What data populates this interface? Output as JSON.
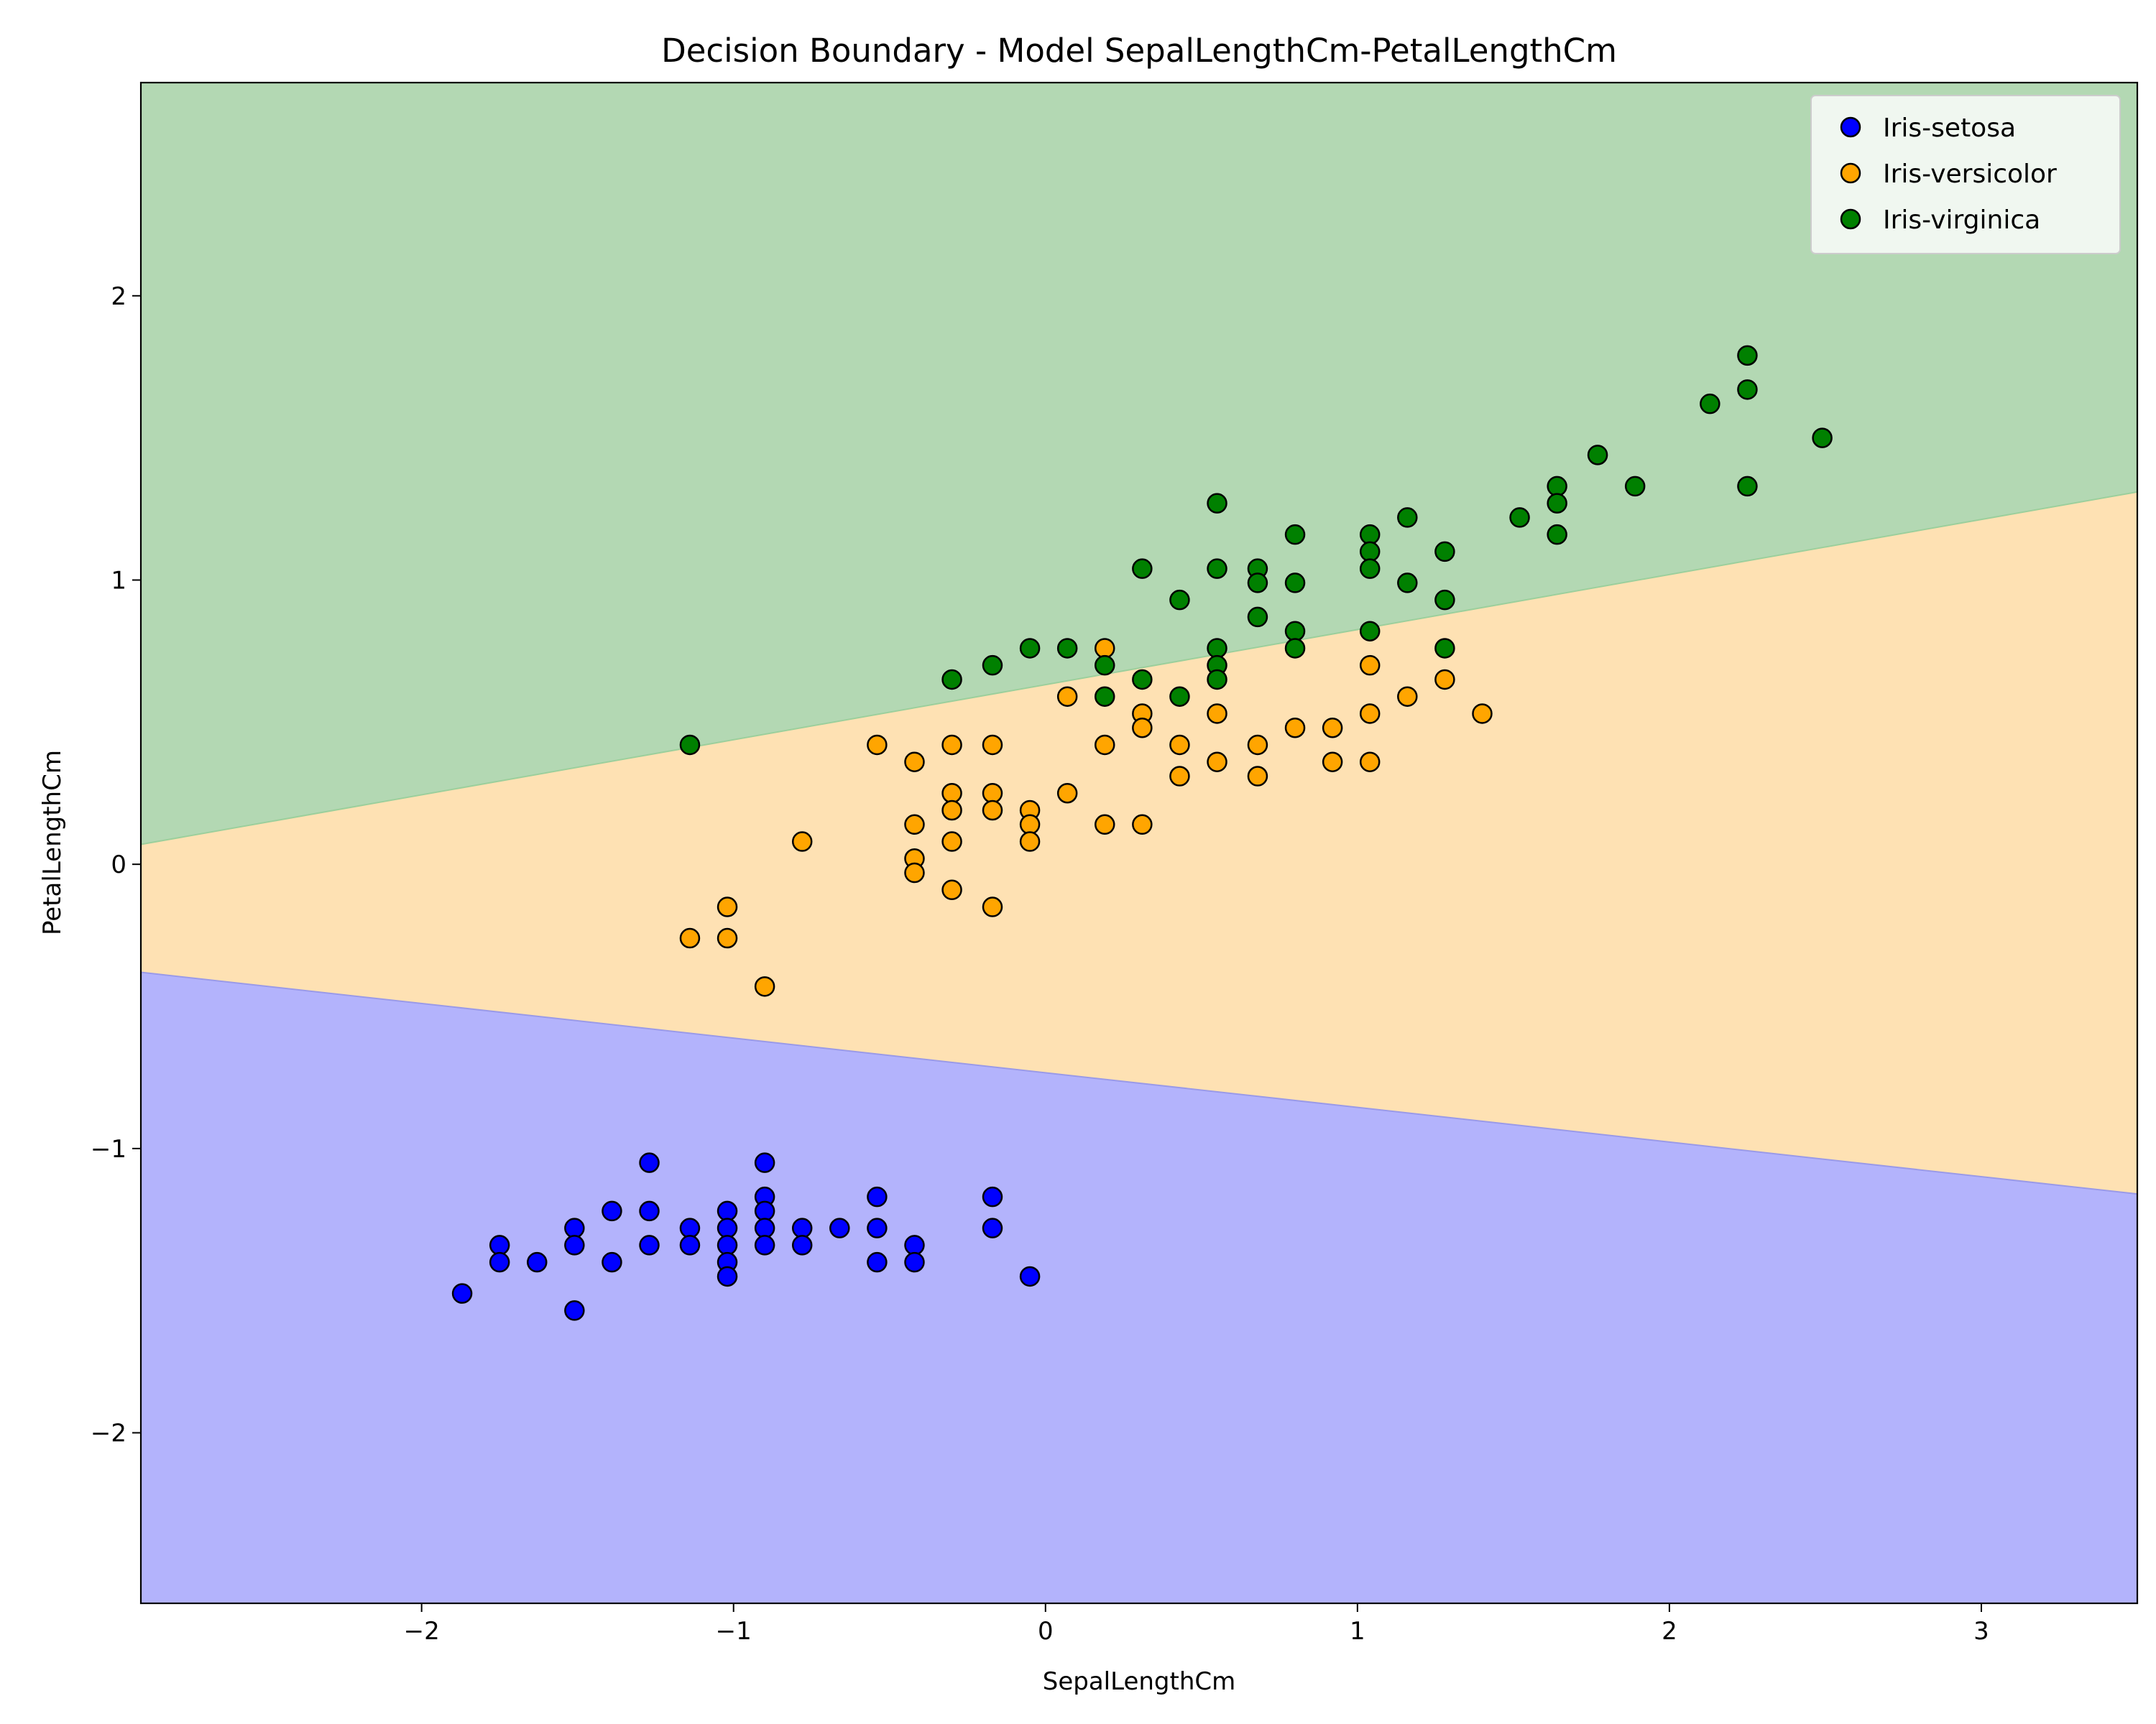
{
  "chart_data": {
    "type": "scatter",
    "title": "Decision Boundary - Model SepalLengthCm-PetalLengthCm",
    "xlabel": "SepalLengthCm",
    "ylabel": "PetalLengthCm",
    "xlim": [
      -2.9,
      3.5
    ],
    "ylim": [
      -2.6,
      2.75
    ],
    "xticks": [
      {
        "value": -2,
        "label": "−2"
      },
      {
        "value": -1,
        "label": "−1"
      },
      {
        "value": 0,
        "label": "0"
      },
      {
        "value": 1,
        "label": "1"
      },
      {
        "value": 2,
        "label": "2"
      },
      {
        "value": 3,
        "label": "3"
      }
    ],
    "yticks": [
      {
        "value": -2,
        "label": "−2"
      },
      {
        "value": -1,
        "label": "−1"
      },
      {
        "value": 0,
        "label": "0"
      },
      {
        "value": 1,
        "label": "1"
      },
      {
        "value": 2,
        "label": "2"
      }
    ],
    "grid": false,
    "legend_position": "top-right",
    "decision_regions": {
      "boundary_setosa_versicolor": {
        "start": [
          -2.9,
          -0.38
        ],
        "end": [
          3.5,
          -1.16
        ]
      },
      "boundary_versicolor_virginica": {
        "start": [
          -2.9,
          0.07
        ],
        "end": [
          3.5,
          1.31
        ]
      },
      "region_colors": {
        "Iris-setosa": "#b3b3fc",
        "Iris-versicolor": "#fee1b3",
        "Iris-virginica": "#b3d8b3"
      }
    },
    "series": [
      {
        "name": "Iris-setosa",
        "color": "#0000ff",
        "points": [
          [
            -1.87,
            -1.51
          ],
          [
            -1.75,
            -1.34
          ],
          [
            -1.75,
            -1.4
          ],
          [
            -1.63,
            -1.4
          ],
          [
            -1.51,
            -1.28
          ],
          [
            -1.51,
            -1.34
          ],
          [
            -1.51,
            -1.57
          ],
          [
            -1.39,
            -1.22
          ],
          [
            -1.39,
            -1.4
          ],
          [
            -1.27,
            -1.05
          ],
          [
            -1.27,
            -1.22
          ],
          [
            -1.27,
            -1.34
          ],
          [
            -1.14,
            -1.28
          ],
          [
            -1.14,
            -1.34
          ],
          [
            -1.02,
            -1.22
          ],
          [
            -1.02,
            -1.28
          ],
          [
            -1.02,
            -1.34
          ],
          [
            -1.02,
            -1.4
          ],
          [
            -1.02,
            -1.45
          ],
          [
            -0.9,
            -1.05
          ],
          [
            -0.9,
            -1.17
          ],
          [
            -0.9,
            -1.22
          ],
          [
            -0.9,
            -1.28
          ],
          [
            -0.9,
            -1.34
          ],
          [
            -0.78,
            -1.28
          ],
          [
            -0.78,
            -1.34
          ],
          [
            -0.66,
            -1.28
          ],
          [
            -0.54,
            -1.17
          ],
          [
            -0.54,
            -1.28
          ],
          [
            -0.54,
            -1.4
          ],
          [
            -0.42,
            -1.34
          ],
          [
            -0.42,
            -1.4
          ],
          [
            -0.17,
            -1.17
          ],
          [
            -0.17,
            -1.28
          ],
          [
            -0.05,
            -1.45
          ]
        ]
      },
      {
        "name": "Iris-versicolor",
        "color": "#ffa500",
        "points": [
          [
            -1.14,
            -0.26
          ],
          [
            -1.02,
            -0.15
          ],
          [
            -1.02,
            -0.26
          ],
          [
            -0.9,
            -0.43
          ],
          [
            -0.78,
            0.08
          ],
          [
            -0.54,
            0.42
          ],
          [
            -0.42,
            0.36
          ],
          [
            -0.42,
            0.14
          ],
          [
            -0.42,
            0.02
          ],
          [
            -0.42,
            -0.03
          ],
          [
            -0.3,
            0.42
          ],
          [
            -0.3,
            0.25
          ],
          [
            -0.3,
            0.19
          ],
          [
            -0.3,
            0.08
          ],
          [
            -0.3,
            -0.09
          ],
          [
            -0.17,
            0.42
          ],
          [
            -0.17,
            0.25
          ],
          [
            -0.17,
            0.19
          ],
          [
            -0.17,
            -0.15
          ],
          [
            -0.05,
            0.19
          ],
          [
            -0.05,
            0.14
          ],
          [
            -0.05,
            0.08
          ],
          [
            0.07,
            0.59
          ],
          [
            0.07,
            0.25
          ],
          [
            0.19,
            0.76
          ],
          [
            0.19,
            0.42
          ],
          [
            0.19,
            0.14
          ],
          [
            0.31,
            0.53
          ],
          [
            0.31,
            0.48
          ],
          [
            0.31,
            0.14
          ],
          [
            0.43,
            0.42
          ],
          [
            0.43,
            0.31
          ],
          [
            0.55,
            0.53
          ],
          [
            0.55,
            0.36
          ],
          [
            0.68,
            0.42
          ],
          [
            0.68,
            0.31
          ],
          [
            0.8,
            0.48
          ],
          [
            0.92,
            0.48
          ],
          [
            0.92,
            0.36
          ],
          [
            1.04,
            0.7
          ],
          [
            1.04,
            0.53
          ],
          [
            1.04,
            0.36
          ],
          [
            1.16,
            0.59
          ],
          [
            1.28,
            0.65
          ],
          [
            1.4,
            0.53
          ]
        ]
      },
      {
        "name": "Iris-virginica",
        "color": "#008000",
        "points": [
          [
            -1.14,
            0.42
          ],
          [
            -0.3,
            0.65
          ],
          [
            -0.17,
            0.7
          ],
          [
            -0.05,
            0.76
          ],
          [
            0.07,
            0.76
          ],
          [
            0.19,
            0.7
          ],
          [
            0.19,
            0.59
          ],
          [
            0.31,
            1.04
          ],
          [
            0.31,
            0.65
          ],
          [
            0.43,
            0.93
          ],
          [
            0.43,
            0.59
          ],
          [
            0.55,
            1.27
          ],
          [
            0.55,
            1.04
          ],
          [
            0.55,
            0.76
          ],
          [
            0.55,
            0.7
          ],
          [
            0.55,
            0.65
          ],
          [
            0.68,
            1.04
          ],
          [
            0.68,
            0.99
          ],
          [
            0.68,
            0.87
          ],
          [
            0.8,
            1.16
          ],
          [
            0.8,
            0.99
          ],
          [
            0.8,
            0.82
          ],
          [
            0.8,
            0.76
          ],
          [
            1.04,
            1.16
          ],
          [
            1.04,
            1.1
          ],
          [
            1.04,
            1.04
          ],
          [
            1.04,
            0.82
          ],
          [
            1.16,
            1.22
          ],
          [
            1.16,
            0.99
          ],
          [
            1.28,
            1.1
          ],
          [
            1.28,
            0.93
          ],
          [
            1.28,
            0.76
          ],
          [
            1.52,
            1.22
          ],
          [
            1.64,
            1.33
          ],
          [
            1.64,
            1.27
          ],
          [
            1.64,
            1.16
          ],
          [
            1.77,
            1.44
          ],
          [
            1.89,
            1.33
          ],
          [
            2.13,
            1.62
          ],
          [
            2.25,
            1.79
          ],
          [
            2.25,
            1.67
          ],
          [
            2.25,
            1.33
          ],
          [
            2.49,
            1.5
          ]
        ]
      }
    ]
  }
}
